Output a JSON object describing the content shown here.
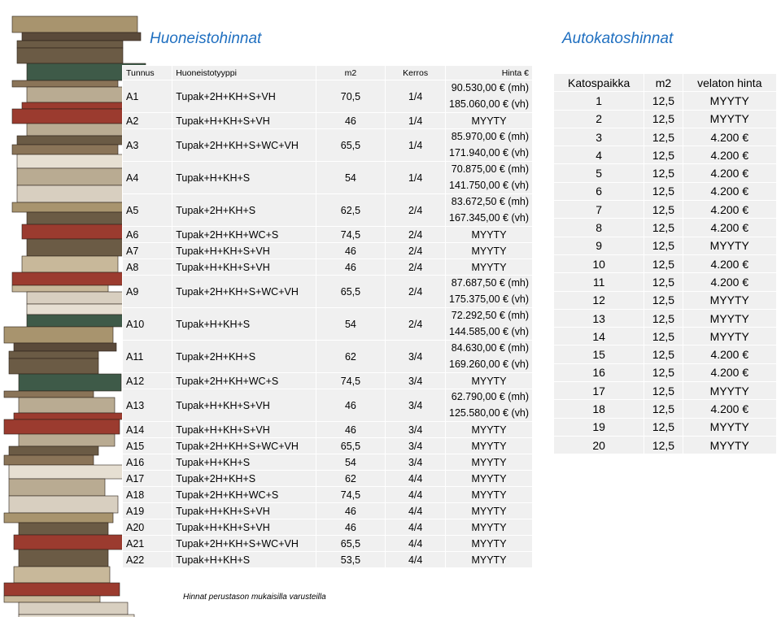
{
  "left": {
    "title": "Huoneistohinnat",
    "header": [
      "Tunnus",
      "Huoneistotyyppi",
      "m2",
      "Kerros",
      "Hinta €"
    ],
    "rows": [
      [
        "A1",
        "Tupak+2H+KH+S+VH",
        "70,5",
        "1/4",
        [
          "90.530,00 € (mh)",
          "185.060,00 € (vh)"
        ]
      ],
      [
        "A2",
        "Tupak+H+KH+S+VH",
        "46",
        "1/4",
        [
          "MYYTY"
        ]
      ],
      [
        "A3",
        "Tupak+2H+KH+S+WC+VH",
        "65,5",
        "1/4",
        [
          "85.970,00 € (mh)",
          "171.940,00 € (vh)"
        ]
      ],
      [
        "A4",
        "Tupak+H+KH+S",
        "54",
        "1/4",
        [
          "70.875,00 € (mh)",
          "141.750,00 € (vh)"
        ]
      ],
      [
        "A5",
        "Tupak+2H+KH+S",
        "62,5",
        "2/4",
        [
          "83.672,50 € (mh)",
          "167.345,00 € (vh)"
        ]
      ],
      [
        "A6",
        "Tupak+2H+KH+WC+S",
        "74,5",
        "2/4",
        [
          "MYYTY"
        ]
      ],
      [
        "A7",
        "Tupak+H+KH+S+VH",
        "46",
        "2/4",
        [
          "MYYTY"
        ]
      ],
      [
        "A8",
        "Tupak+H+KH+S+VH",
        "46",
        "2/4",
        [
          "MYYTY"
        ]
      ],
      [
        "A9",
        "Tupak+2H+KH+S+WC+VH",
        "65,5",
        "2/4",
        [
          "87.687,50 € (mh)",
          "175.375,00 € (vh)"
        ]
      ],
      [
        "A10",
        "Tupak+H+KH+S",
        "54",
        "2/4",
        [
          "72.292,50 € (mh)",
          "144.585,00 € (vh)"
        ]
      ],
      [
        "A11",
        "Tupak+2H+KH+S",
        "62",
        "3/4",
        [
          "84.630,00 € (mh)",
          "169.260,00 € (vh)"
        ]
      ],
      [
        "A12",
        "Tupak+2H+KH+WC+S",
        "74,5",
        "3/4",
        [
          "MYYTY"
        ]
      ],
      [
        "A13",
        "Tupak+H+KH+S+VH",
        "46",
        "3/4",
        [
          "62.790,00 € (mh)",
          "125.580,00 € (vh)"
        ]
      ],
      [
        "A14",
        "Tupak+H+KH+S+VH",
        "46",
        "3/4",
        [
          "MYYTY"
        ]
      ],
      [
        "A15",
        "Tupak+2H+KH+S+WC+VH",
        "65,5",
        "3/4",
        [
          "MYYTY"
        ]
      ],
      [
        "A16",
        "Tupak+H+KH+S",
        "54",
        "3/4",
        [
          "MYYTY"
        ]
      ],
      [
        "A17",
        "Tupak+2H+KH+S",
        "62",
        "4/4",
        [
          "MYYTY"
        ]
      ],
      [
        "A18",
        "Tupak+2H+KH+WC+S",
        "74,5",
        "4/4",
        [
          "MYYTY"
        ]
      ],
      [
        "A19",
        "Tupak+H+KH+S+VH",
        "46",
        "4/4",
        [
          "MYYTY"
        ]
      ],
      [
        "A20",
        "Tupak+H+KH+S+VH",
        "46",
        "4/4",
        [
          "MYYTY"
        ]
      ],
      [
        "A21",
        "Tupak+2H+KH+S+WC+VH",
        "65,5",
        "4/4",
        [
          "MYYTY"
        ]
      ],
      [
        "A22",
        "Tupak+H+KH+S",
        "53,5",
        "4/4",
        [
          "MYYTY"
        ]
      ]
    ]
  },
  "right": {
    "title": "Autokatoshinnat",
    "header": [
      "Katospaikka",
      "m2",
      "velaton hinta"
    ],
    "rows": [
      [
        "1",
        "12,5",
        "MYYTY"
      ],
      [
        "2",
        "12,5",
        "MYYTY"
      ],
      [
        "3",
        "12,5",
        "4.200 €"
      ],
      [
        "4",
        "12,5",
        "4.200 €"
      ],
      [
        "5",
        "12,5",
        "4.200 €"
      ],
      [
        "6",
        "12,5",
        "4.200 €"
      ],
      [
        "7",
        "12,5",
        "4.200 €"
      ],
      [
        "8",
        "12,5",
        "4.200 €"
      ],
      [
        "9",
        "12,5",
        "MYYTY"
      ],
      [
        "10",
        "12,5",
        "4.200 €"
      ],
      [
        "11",
        "12,5",
        "4.200 €"
      ],
      [
        "12",
        "12,5",
        "MYYTY"
      ],
      [
        "13",
        "12,5",
        "MYYTY"
      ],
      [
        "14",
        "12,5",
        "MYYTY"
      ],
      [
        "15",
        "12,5",
        "4.200 €"
      ],
      [
        "16",
        "12,5",
        "4.200 €"
      ],
      [
        "17",
        "12,5",
        "MYYTY"
      ],
      [
        "18",
        "12,5",
        "4.200 €"
      ],
      [
        "19",
        "12,5",
        "MYYTY"
      ],
      [
        "20",
        "12,5",
        "MYYTY"
      ]
    ]
  },
  "footer": "Hinnat perustason mukaisilla varusteilla"
}
